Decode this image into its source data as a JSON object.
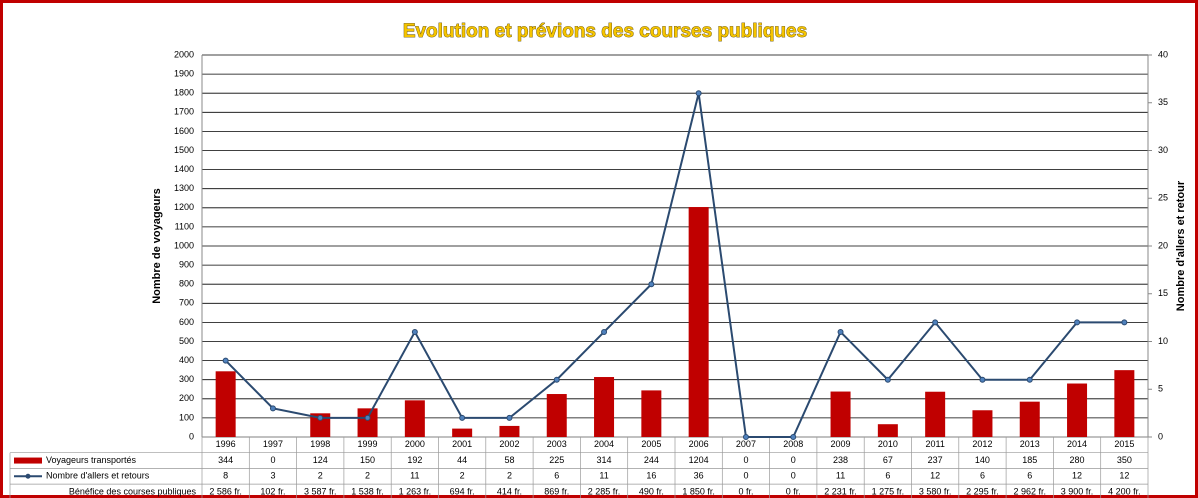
{
  "chart_data": {
    "type": "bar",
    "title": "Evolution et prévions des courses publiques",
    "y_label": "Nombre de voyageurs",
    "y2_label": "Nombre d'allers et retour",
    "categories": [
      "1996",
      "1997",
      "1998",
      "1999",
      "2000",
      "2001",
      "2002",
      "2003",
      "2004",
      "2005",
      "2006",
      "2007",
      "2008",
      "2009",
      "2010",
      "2011",
      "2012",
      "2013",
      "2014",
      "2015"
    ],
    "series": [
      {
        "name": "Voyageurs transportés",
        "type": "bar",
        "color": "#c00000",
        "values": [
          344,
          0,
          124,
          150,
          192,
          44,
          58,
          225,
          314,
          244,
          1204,
          0,
          0,
          238,
          67,
          237,
          140,
          185,
          280,
          350
        ]
      },
      {
        "name": "Nombre d'allers et retours",
        "type": "line",
        "axis": "y2",
        "color": "#2b4a70",
        "values": [
          8,
          3,
          2,
          2,
          11,
          2,
          2,
          6,
          11,
          16,
          36,
          0,
          0,
          11,
          6,
          12,
          6,
          6,
          12,
          12
        ]
      }
    ],
    "ylim": [
      0,
      2000
    ],
    "yticks": [
      0,
      100,
      200,
      300,
      400,
      500,
      600,
      700,
      800,
      900,
      1000,
      1100,
      1200,
      1300,
      1400,
      1500,
      1600,
      1700,
      1800,
      1900,
      2000
    ],
    "y2lim": [
      0,
      40
    ],
    "y2ticks": [
      0,
      5,
      10,
      15,
      20,
      25,
      30,
      35,
      40
    ],
    "grid": true,
    "table_rows": [
      {
        "name": "Bénéfice des courses publiques",
        "cells": [
          "2 586 fr.",
          "102 fr.",
          "3 587 fr.",
          "1 538 fr.",
          "1 263 fr.",
          "694 fr.",
          "414 fr.",
          "869 fr.",
          "2 285 fr.",
          "490 fr.",
          "1 850 fr.",
          "0 fr.",
          "0 fr.",
          "2 231 fr.",
          "1 275 fr.",
          "3 580 fr.",
          "2 295 fr.",
          "2 962 fr.",
          "3 900 fr.",
          "4 200 fr."
        ]
      }
    ]
  }
}
